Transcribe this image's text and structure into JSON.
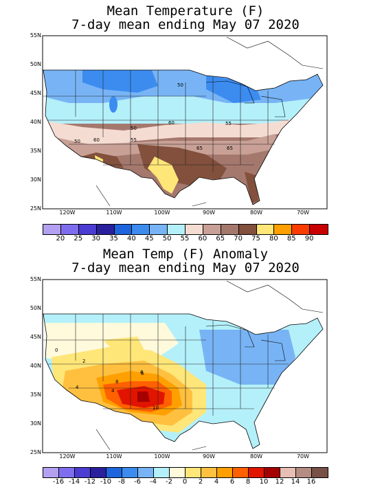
{
  "panel1": {
    "title1": "Mean Temperature (F)",
    "title2": "7-day mean ending May 07 2020",
    "lat_labels": [
      "55N",
      "50N",
      "45N",
      "40N",
      "35N",
      "30N",
      "25N"
    ],
    "lon_labels": [
      "120W",
      "110W",
      "100W",
      "90W",
      "80W",
      "70W"
    ],
    "contour_labels": [
      "50",
      "60",
      "55",
      "50",
      "50",
      "55",
      "60",
      "65",
      "65"
    ],
    "colorbar": {
      "colors": [
        "#b4a0f0",
        "#7f6df0",
        "#4b3cd2",
        "#28209c",
        "#1e64dc",
        "#3c8cf0",
        "#78b4f5",
        "#b4f0fa",
        "#f5dcd2",
        "#c8a096",
        "#a5786e",
        "#82503c",
        "#ffe678",
        "#ffa000",
        "#fa3c00",
        "#c80000"
      ],
      "labels": [
        "20",
        "25",
        "30",
        "35",
        "40",
        "45",
        "50",
        "55",
        "60",
        "65",
        "70",
        "75",
        "80",
        "85",
        "90"
      ]
    }
  },
  "panel2": {
    "title1": "Mean Temp (F) Anomaly",
    "title2": "7-day mean ending May 07 2020",
    "lat_labels": [
      "55N",
      "50N",
      "45N",
      "40N",
      "35N",
      "30N",
      "25N"
    ],
    "lon_labels": [
      "120W",
      "110W",
      "100W",
      "90W",
      "80W",
      "70W"
    ],
    "contour_labels": [
      "0",
      "2",
      "4",
      "6",
      "8",
      "10",
      "8",
      "4"
    ],
    "colorbar": {
      "colors": [
        "#b4a0f0",
        "#7f6df0",
        "#4b3cd2",
        "#28209c",
        "#1e64dc",
        "#3c8cf0",
        "#78b4f5",
        "#b4f0fa",
        "#fffadc",
        "#ffe678",
        "#ffc040",
        "#ffa000",
        "#ff6000",
        "#e11400",
        "#a50000",
        "#e6beb4",
        "#b48c82",
        "#785046"
      ],
      "labels": [
        "-16",
        "-14",
        "-12",
        "-10",
        "-8",
        "-6",
        "-4",
        "-2",
        "0",
        "2",
        "4",
        "6",
        "8",
        "10",
        "12",
        "14",
        "16"
      ]
    }
  }
}
